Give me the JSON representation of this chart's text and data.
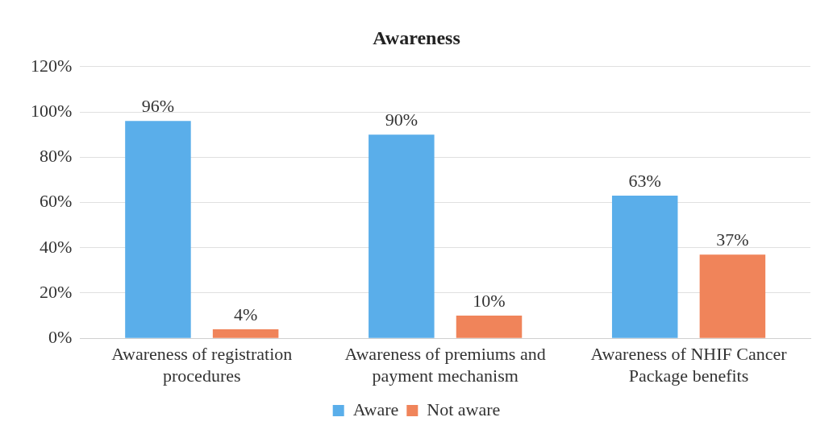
{
  "chart_data": {
    "type": "bar",
    "title": "Awareness",
    "categories": [
      "Awareness of registration procedures",
      "Awareness of premiums and payment mechanism",
      "Awareness of NHIF Cancer Package benefits"
    ],
    "series": [
      {
        "name": "Aware",
        "color": "#5aaeea",
        "values": [
          96,
          90,
          63
        ],
        "value_labels": [
          "96%",
          "90%",
          "63%"
        ]
      },
      {
        "name": "Not aware",
        "color": "#f0845a",
        "values": [
          4,
          10,
          37
        ],
        "value_labels": [
          "4%",
          "10%",
          "37%"
        ]
      }
    ],
    "ylim": [
      0,
      120
    ],
    "yticks": [
      {
        "value": 0,
        "label": "0%"
      },
      {
        "value": 20,
        "label": "20%"
      },
      {
        "value": 40,
        "label": "40%"
      },
      {
        "value": 60,
        "label": "60%"
      },
      {
        "value": 80,
        "label": "80%"
      },
      {
        "value": 100,
        "label": "100%"
      },
      {
        "value": 120,
        "label": "120%"
      }
    ],
    "grid": "y",
    "legend": "bottom"
  }
}
